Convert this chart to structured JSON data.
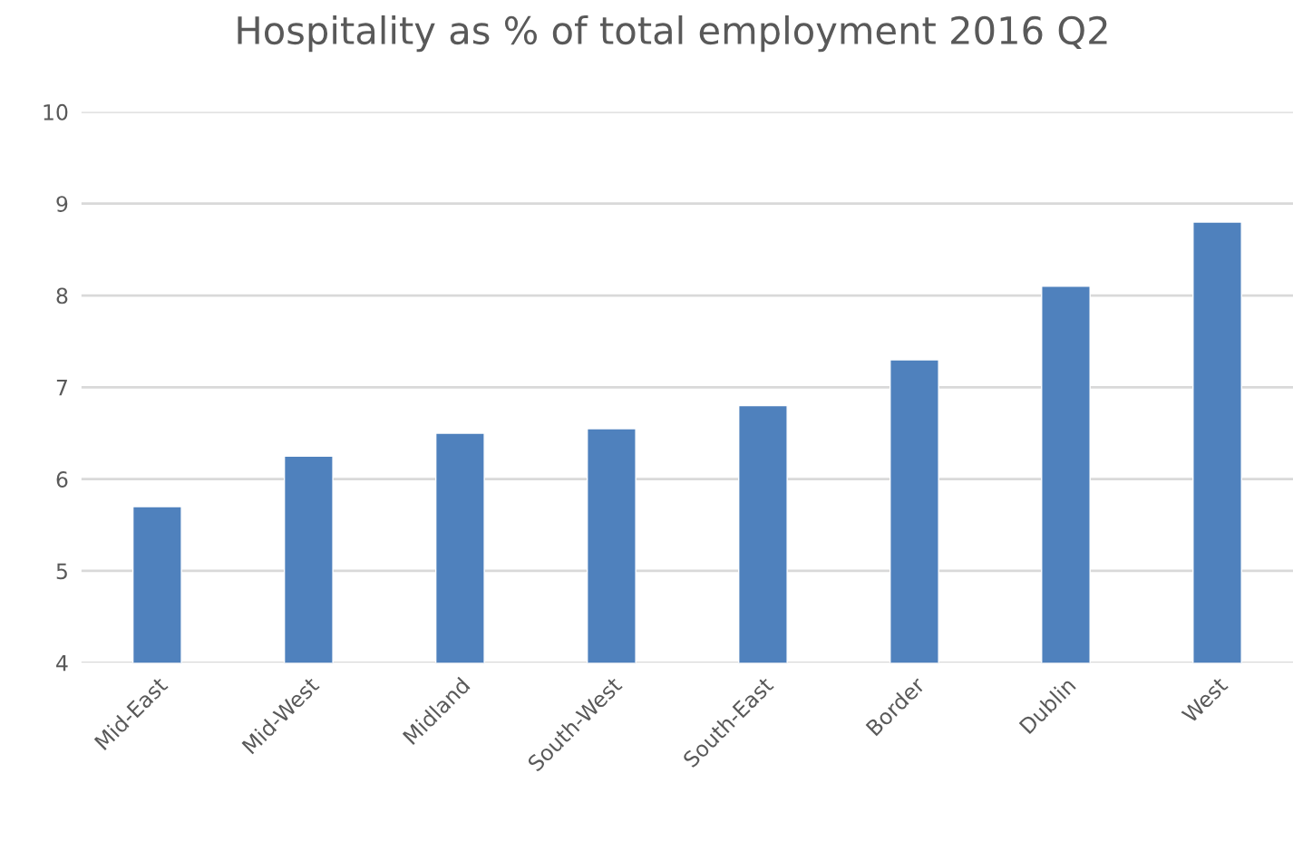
{
  "chart_data": {
    "type": "bar",
    "title": "Hospitality as % of total employment 2016 Q2",
    "categories": [
      "Mid-East",
      "Mid-West",
      "Midland",
      "South-West",
      "South-East",
      "Border",
      "Dublin",
      "West"
    ],
    "values": [
      5.7,
      6.25,
      6.5,
      6.55,
      6.8,
      7.3,
      8.1,
      8.8
    ],
    "color": "#4f81bd",
    "ylim": [
      4,
      10
    ],
    "yticks": [
      4,
      5,
      6,
      7,
      8,
      9,
      10
    ],
    "grid": "y",
    "legend": false
  }
}
